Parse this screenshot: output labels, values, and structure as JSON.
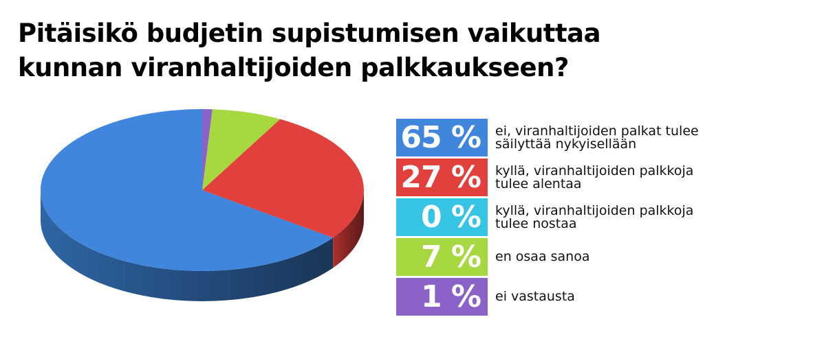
{
  "title_lines": [
    "Pitäisikö budjetin supistumisen vaikuttaa",
    "kunnan viranhaltijoiden palkkaukseen?"
  ],
  "chart_data": {
    "type": "pie",
    "title": "Pitäisikö budjetin supistumisen vaikuttaa kunnan viranhaltijoiden palkkaukseen?",
    "unit": "%",
    "legend_position": "right",
    "slices": [
      {
        "value": 65,
        "value_label": "65 %",
        "label_lines": [
          "ei, viranhaltijoiden palkat tulee",
          "säilyttää nykyisellään"
        ],
        "color": "#3f86dc"
      },
      {
        "value": 27,
        "value_label": "27 %",
        "label_lines": [
          "kyllä, viranhaltijoiden palkkoja",
          "tulee alentaa"
        ],
        "color": "#e2403d"
      },
      {
        "value": 0,
        "value_label": "0 %",
        "label_lines": [
          "kyllä, viranhaltijoiden palkkoja",
          "tulee nostaa"
        ],
        "color": "#36c4e4"
      },
      {
        "value": 7,
        "value_label": "7 %",
        "label_lines": [
          "en osaa sanoa"
        ],
        "color": "#a7d840"
      },
      {
        "value": 1,
        "value_label": "1 %",
        "label_lines": [
          "ei vastausta"
        ],
        "color": "#8a62c8"
      }
    ]
  }
}
